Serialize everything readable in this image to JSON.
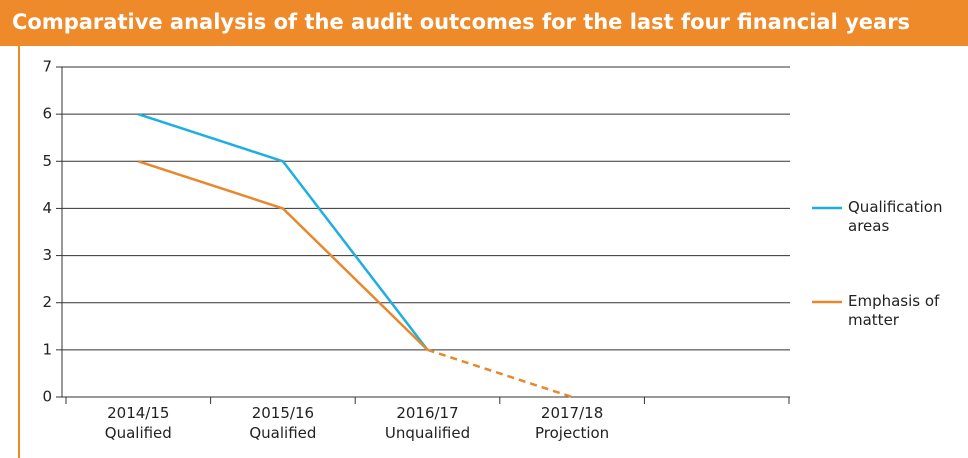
{
  "chart_data": {
    "type": "line",
    "title": "Comparative analysis of the audit outcomes for the last four financial years",
    "categories": [
      "2014/15\nQualified",
      "2015/16\nQualified",
      "2016/17\nUnqualified",
      "2017/18\nProjection",
      null
    ],
    "series": [
      {
        "name": "Qualification areas",
        "color": "#1eaee0",
        "values": [
          6,
          5,
          1,
          null,
          null
        ]
      },
      {
        "name": "Emphasis of matter",
        "color": "#e8882c",
        "values": [
          5,
          4,
          1,
          0,
          null
        ],
        "dash_from_index": 2
      }
    ],
    "ylim": [
      0,
      7
    ],
    "yticks": [
      0,
      1,
      2,
      3,
      4,
      5,
      6,
      7
    ],
    "grid": true,
    "legend": "right"
  }
}
